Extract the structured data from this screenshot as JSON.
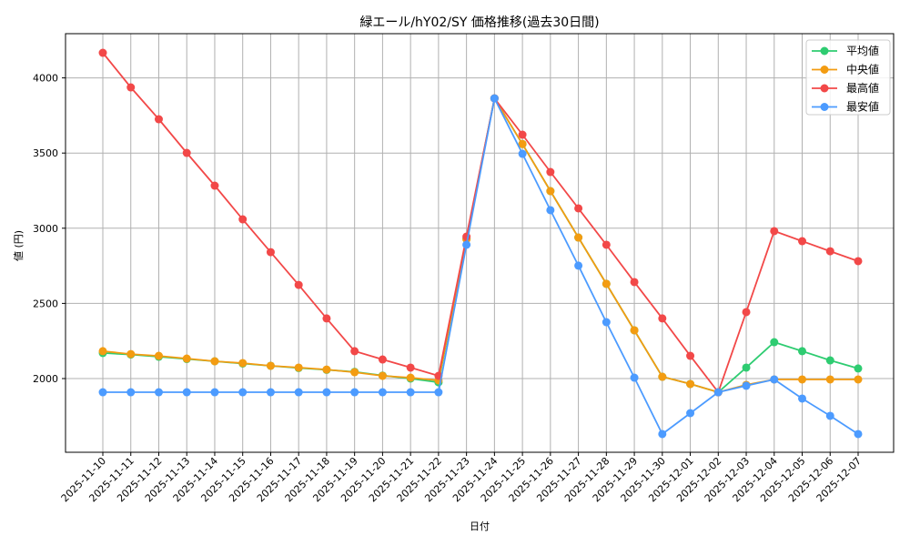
{
  "chart_data": {
    "type": "line",
    "title": "緑エール/hY02/SY 価格推移(過去30日間)",
    "xlabel": "日付",
    "ylabel": "値 (円)",
    "ylim": [
      1500,
      4300
    ],
    "yticks": [
      2000,
      2500,
      3000,
      3500,
      4000
    ],
    "grid": true,
    "legend_position": "upper right",
    "x": [
      "2025-11-10",
      "2025-11-11",
      "2025-11-12",
      "2025-11-13",
      "2025-11-14",
      "2025-11-15",
      "2025-11-16",
      "2025-11-17",
      "2025-11-18",
      "2025-11-19",
      "2025-11-20",
      "2025-11-21",
      "2025-11-22",
      "2025-11-23",
      "2025-11-24",
      "2025-11-25",
      "2025-11-26",
      "2025-11-27",
      "2025-11-28",
      "2025-11-29",
      "2025-11-30",
      "2025-12-01",
      "2025-12-02",
      "2025-12-03",
      "2025-12-04",
      "2025-12-05",
      "2025-12-06",
      "2025-12-07"
    ],
    "series": [
      {
        "name": "平均値",
        "color": "#2ecc71",
        "values": [
          2170,
          2160,
          2145,
          2130,
          2115,
          2100,
          2085,
          2070,
          2058,
          2045,
          2020,
          2000,
          1975,
          2930,
          3864,
          3560,
          3247,
          2938,
          2630,
          2321,
          2012,
          1964,
          1909,
          2073,
          2242,
          2182,
          2121,
          2067
        ]
      },
      {
        "name": "中央値",
        "color": "#f39c12",
        "values": [
          2182,
          2163,
          2151,
          2133,
          2115,
          2103,
          2085,
          2073,
          2060,
          2042,
          2018,
          2006,
          1988,
          2926,
          3864,
          3560,
          3247,
          2938,
          2630,
          2321,
          2012,
          1964,
          1909,
          1958,
          1994,
          1994,
          1994,
          1994
        ]
      },
      {
        "name": "最高値",
        "color": "#f24848",
        "values": [
          4167,
          3937,
          3725,
          3501,
          3283,
          3059,
          2841,
          2623,
          2400,
          2182,
          2127,
          2073,
          2018,
          2944,
          3864,
          3622,
          3374,
          3132,
          2890,
          2642,
          2400,
          2151,
          1909,
          2442,
          2981,
          2914,
          2847,
          2781
        ]
      },
      {
        "name": "最安値",
        "color": "#4c9bff",
        "values": [
          1909,
          1909,
          1909,
          1909,
          1909,
          1909,
          1909,
          1909,
          1909,
          1909,
          1909,
          1909,
          1909,
          2890,
          3864,
          3495,
          3120,
          2751,
          2375,
          2006,
          1631,
          1770,
          1909,
          1952,
          1994,
          1867,
          1752,
          1631
        ]
      }
    ]
  }
}
